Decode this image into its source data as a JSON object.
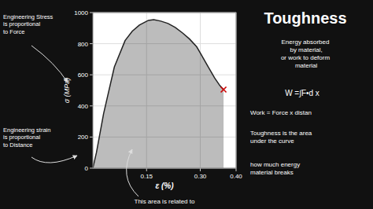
{
  "chart_data": {
    "type": "area",
    "title": "Toughness",
    "x_label": "ε (%)",
    "y_label": "σ (MPa)",
    "xlim": [
      0,
      0.4
    ],
    "ylim": [
      0,
      1000
    ],
    "xticks": [
      0.15,
      {
        "value": 0.3,
        "label": "0.30"
      },
      {
        "value": 0.4,
        "label": "0.40"
      }
    ],
    "yticks": [
      0,
      200,
      400,
      600,
      800,
      1000
    ],
    "grid": true,
    "series": [
      {
        "type": "area",
        "color": "#222222",
        "x": [
          0.0,
          0.01,
          0.03,
          0.06,
          0.09,
          0.11,
          0.13,
          0.155,
          0.17,
          0.19,
          0.21,
          0.23,
          0.25,
          0.27,
          0.29,
          0.3,
          0.32,
          0.34,
          0.355,
          0.365
        ],
        "values": [
          0,
          100,
          350,
          650,
          820,
          880,
          920,
          950,
          955,
          945,
          930,
          905,
          870,
          830,
          780,
          740,
          660,
          580,
          530,
          505
        ]
      },
      {
        "type": "scatter",
        "marker": "x",
        "color": "#cc0000",
        "x": [
          0.365
        ],
        "values": [
          505
        ]
      }
    ],
    "annotations": [
      "Engineering Stress\nis proportional\nto Force",
      "Engineering strain\nis proportional\nto Distance",
      "This area is related to",
      "Energy absorbed\n by material,\nor work to deform\n material",
      "W =∫F•d x",
      "Work = Force x distan",
      "Toughness is the area\nunder the curve",
      "how much energy\nmaterial breaks"
    ]
  }
}
